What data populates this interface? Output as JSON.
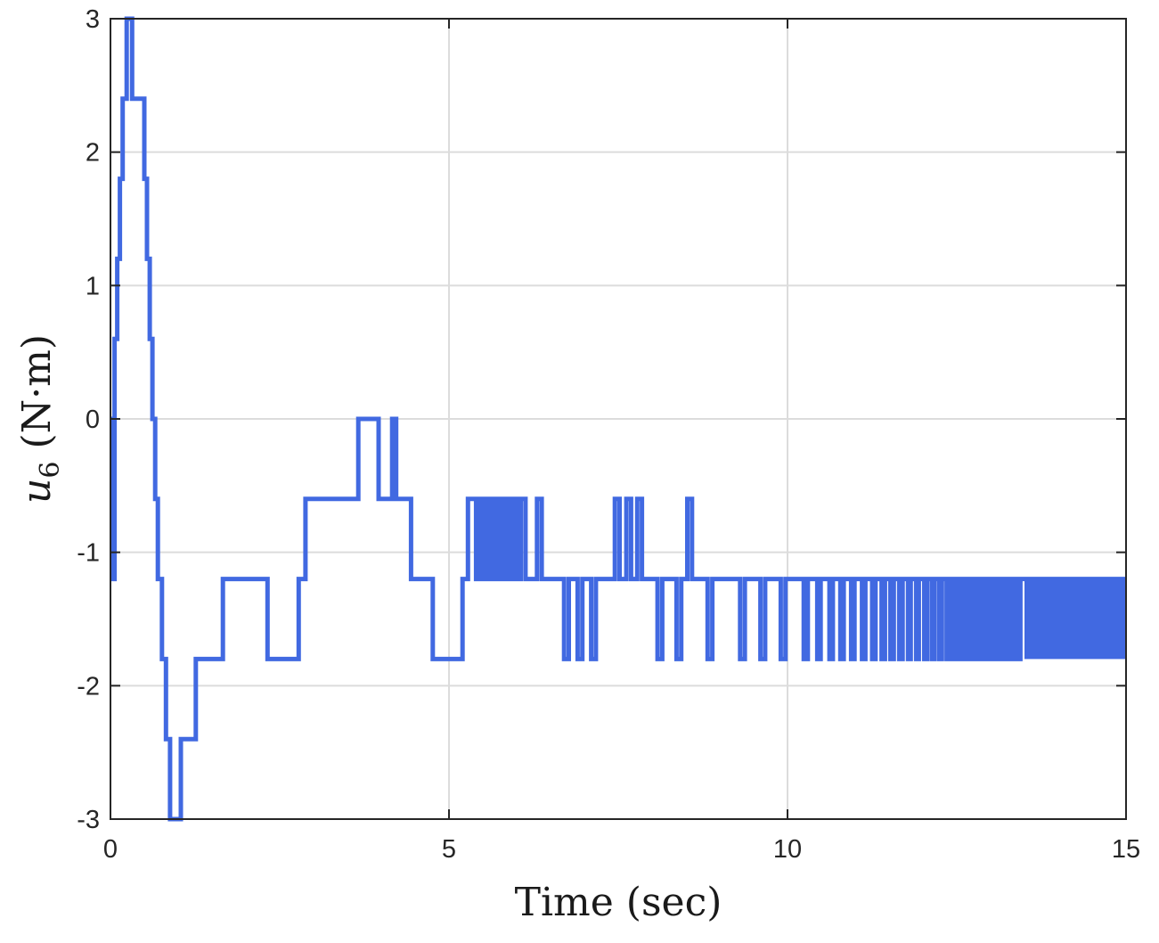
{
  "chart_data": {
    "type": "line",
    "step": true,
    "xlabel": "Time (sec)",
    "ylabel": {
      "base": "u",
      "subscript": "6",
      "unit": "(N·m)"
    },
    "xlim": [
      0,
      15
    ],
    "ylim": [
      -3,
      3
    ],
    "xticks": [
      0,
      5,
      10,
      15
    ],
    "xtick_labels": [
      "0",
      "5",
      "10",
      "15"
    ],
    "yticks": [
      -3,
      -2,
      -1,
      0,
      1,
      2,
      3
    ],
    "ytick_labels": [
      "-3",
      "-2",
      "-1",
      "0",
      "1",
      "2",
      "3"
    ],
    "grid": true,
    "series": [
      {
        "color": "#4169e1",
        "x": [
          0,
          0.02,
          0.02,
          0.04,
          0.04,
          0.06,
          0.06,
          0.1,
          0.1,
          0.14,
          0.14,
          0.18,
          0.18,
          0.24,
          0.24,
          0.32,
          0.32,
          0.5,
          0.5,
          0.54,
          0.54,
          0.58,
          0.58,
          0.62,
          0.62,
          0.66,
          0.66,
          0.7,
          0.7,
          0.76,
          0.76,
          0.82,
          0.82,
          0.88,
          0.88,
          1.04,
          1.04,
          1.26,
          1.26,
          1.66,
          1.66,
          2.32,
          2.32,
          2.78,
          2.78,
          2.88,
          2.88,
          3.66,
          3.66,
          3.96,
          3.96,
          4.16,
          4.16,
          4.22,
          4.22,
          4.44,
          4.44,
          4.76,
          4.76,
          5.2,
          5.2,
          5.28,
          5.28,
          5.4,
          5.4,
          5.45,
          5.45,
          5.5,
          5.5,
          5.55,
          5.55,
          5.6,
          5.6,
          5.66,
          5.66,
          5.72,
          5.72,
          5.76,
          5.76,
          5.8,
          5.8,
          5.85,
          5.85,
          5.9,
          5.9,
          5.95,
          5.95,
          6.0,
          6.0,
          6.06,
          6.06,
          6.13,
          6.13,
          6.3,
          6.3,
          6.37,
          6.37,
          6.7,
          6.7,
          6.77,
          6.77,
          6.9,
          6.9,
          6.97,
          6.97,
          7.1,
          7.1,
          7.17,
          7.17,
          7.45,
          7.45,
          7.52,
          7.52,
          7.62,
          7.62,
          7.69,
          7.69,
          7.78,
          7.78,
          7.85,
          7.85,
          8.08,
          8.08,
          8.15,
          8.15,
          8.36,
          8.36,
          8.43,
          8.43,
          8.52,
          8.52,
          8.59,
          8.59,
          8.82,
          8.82,
          8.89,
          8.89,
          9.3,
          9.3,
          9.37,
          9.37,
          9.6,
          9.6,
          9.67,
          9.67,
          9.9,
          9.9,
          9.97,
          9.97,
          10.24,
          10.24,
          10.3,
          10.3,
          10.44,
          10.44,
          10.49,
          10.49,
          10.62,
          10.62,
          10.67,
          10.67,
          10.78,
          10.78,
          10.83,
          10.83,
          10.94,
          10.94,
          10.99,
          10.99,
          11.1,
          11.1,
          11.15,
          11.15,
          11.25,
          11.25,
          11.3,
          11.3,
          11.39,
          11.39,
          11.44,
          11.44,
          11.52,
          11.52,
          11.57,
          11.57,
          11.65,
          11.65,
          11.7,
          11.7,
          11.78,
          11.78,
          11.82,
          11.82,
          11.9,
          11.9,
          11.94,
          11.94,
          12.02,
          12.02,
          12.06,
          12.06,
          12.13,
          12.13,
          12.17,
          12.17,
          12.24,
          12.24,
          12.28,
          12.28,
          12.35,
          12.35,
          12.39,
          12.39,
          12.45,
          12.45,
          12.49,
          12.49,
          12.55,
          12.55,
          12.59,
          12.59,
          12.65,
          12.65,
          12.69,
          12.69,
          12.75,
          12.75,
          12.79,
          12.79,
          12.85,
          12.85,
          12.89,
          12.89,
          12.95,
          12.95,
          12.99,
          12.99,
          13.04,
          13.04,
          13.08,
          13.08,
          13.13,
          13.13,
          13.17,
          13.17,
          13.22,
          13.22,
          13.26,
          13.26,
          13.31,
          13.31,
          13.35,
          13.35,
          13.4,
          13.4,
          13.44,
          13.44,
          13.5,
          15
        ],
        "y": [
          -1.2,
          -1.2,
          0,
          0,
          -1.2,
          -1.2,
          0.6,
          0.6,
          1.2,
          1.2,
          1.8,
          1.8,
          2.4,
          2.4,
          3,
          3,
          2.4,
          2.4,
          1.8,
          1.8,
          1.2,
          1.2,
          0.6,
          0.6,
          0,
          0,
          -0.6,
          -0.6,
          -1.2,
          -1.2,
          -1.8,
          -1.8,
          -2.4,
          -2.4,
          -3,
          -3,
          -2.4,
          -2.4,
          -1.8,
          -1.8,
          -1.2,
          -1.2,
          -1.8,
          -1.8,
          -1.2,
          -1.2,
          -0.6,
          -0.6,
          0,
          0,
          -0.6,
          -0.6,
          0,
          0,
          -0.6,
          -0.6,
          -1.2,
          -1.2,
          -1.8,
          -1.8,
          -1.2,
          -1.2,
          -0.6,
          -0.6,
          -1.2,
          -1.2,
          -0.6,
          -0.6,
          -1.2,
          -1.2,
          -0.6,
          -0.6,
          -1.2,
          -1.2,
          -0.6,
          -0.6,
          -1.2,
          -1.2,
          -0.6,
          -0.6,
          -1.2,
          -1.2,
          -0.6,
          -0.6,
          -1.2,
          -1.2,
          -0.6,
          -0.6,
          -1.2,
          -1.2,
          -0.6,
          -0.6,
          -1.2,
          -1.2,
          -0.6,
          -0.6,
          -1.2,
          -1.2,
          -1.8,
          -1.8,
          -1.2,
          -1.2,
          -1.8,
          -1.8,
          -1.2,
          -1.2,
          -1.8,
          -1.8,
          -1.2,
          -1.2,
          -0.6,
          -0.6,
          -1.2,
          -1.2,
          -0.6,
          -0.6,
          -1.2,
          -1.2,
          -0.6,
          -0.6,
          -1.2,
          -1.2,
          -1.8,
          -1.8,
          -1.2,
          -1.2,
          -1.8,
          -1.8,
          -1.2,
          -1.2,
          -0.6,
          -0.6,
          -1.2,
          -1.2,
          -1.8,
          -1.8,
          -1.2,
          -1.2,
          -1.8,
          -1.8,
          -1.2,
          -1.2,
          -1.8,
          -1.8,
          -1.2,
          -1.2,
          -1.8,
          -1.8,
          -1.2,
          -1.2,
          -1.8,
          -1.8,
          -1.2,
          -1.2,
          -1.8,
          -1.8,
          -1.2,
          -1.2,
          -1.8,
          -1.8,
          -1.2,
          -1.2,
          -1.8,
          -1.8,
          -1.2,
          -1.2,
          -1.8,
          -1.8,
          -1.2,
          -1.2,
          -1.8,
          -1.8,
          -1.2,
          -1.2,
          -1.8,
          -1.8,
          -1.2,
          -1.2,
          -1.8,
          -1.8,
          -1.2,
          -1.2,
          -1.8,
          -1.8,
          -1.2,
          -1.2,
          -1.8,
          -1.8,
          -1.2,
          -1.2,
          -1.8,
          -1.8,
          -1.2,
          -1.2,
          -1.8,
          -1.8,
          -1.2,
          -1.2,
          -1.8,
          -1.8,
          -1.2,
          -1.2,
          -1.8,
          -1.8,
          -1.2,
          -1.2,
          -1.8,
          -1.8,
          -1.2,
          -1.2,
          -1.8,
          -1.8,
          -1.2,
          -1.2,
          -1.8,
          -1.8,
          -1.2,
          -1.2,
          -1.8,
          -1.8,
          -1.2,
          -1.2,
          -1.8,
          -1.8,
          -1.2,
          -1.2,
          -1.8,
          -1.8,
          -1.2,
          -1.2,
          -1.8,
          -1.8,
          -1.2,
          -1.2,
          -1.8,
          -1.8,
          -1.2,
          -1.2,
          -1.8,
          -1.8,
          -1.2,
          -1.2,
          -1.8,
          -1.8,
          -1.2,
          -1.2,
          -1.8,
          -1.8,
          -1.2,
          -1.2,
          -1.8,
          -1.8,
          -1.2,
          -1.2,
          -1.8,
          -1.8,
          -1.2,
          -1.2,
          -1.2
        ],
        "high_frequency_band": {
          "x_start": 13.5,
          "x_end": 15,
          "y_low": -1.8,
          "y_high": -1.2
        }
      }
    ]
  }
}
